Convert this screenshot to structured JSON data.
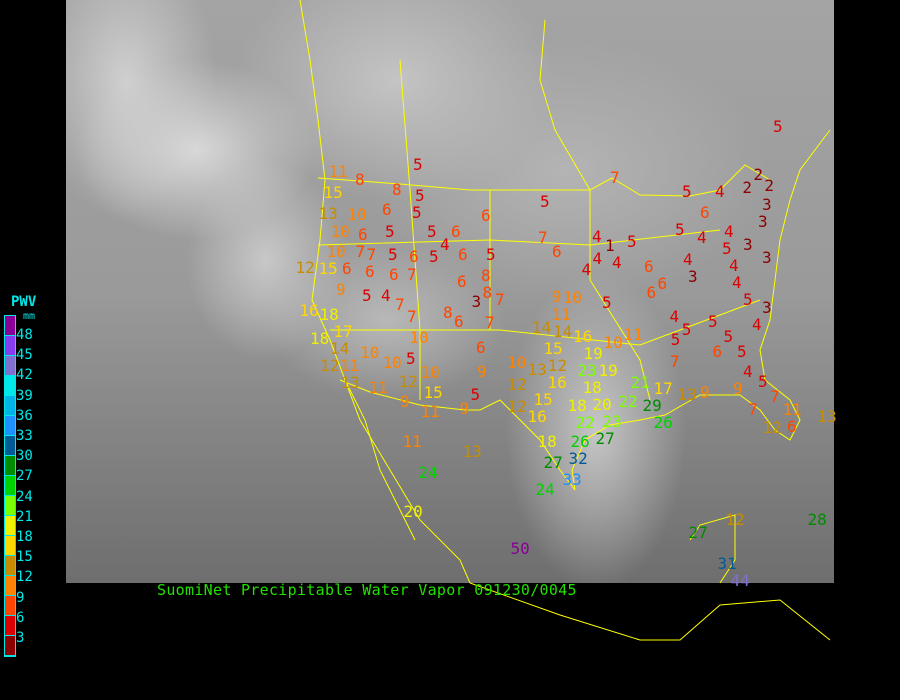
{
  "caption": "SuomiNet Precipitable Water Vapor 091230/0045",
  "legend": {
    "title": "PWV",
    "unit": "mm",
    "labels": [
      "48",
      "45",
      "42",
      "39",
      "36",
      "33",
      "30",
      "27",
      "24",
      "21",
      "18",
      "15",
      "12",
      "9",
      "6",
      "3"
    ],
    "colors": [
      "#8a0096",
      "#8a3cf0",
      "#8070d0",
      "#00e8e8",
      "#00b4e8",
      "#1e90ff",
      "#005a96",
      "#008c00",
      "#00d200",
      "#78ff00",
      "#f0f000",
      "#ffd700",
      "#c88c00",
      "#ff8200",
      "#ff4600",
      "#dc0000",
      "#8c0000"
    ]
  },
  "stations": [
    "11",
    "8",
    "15",
    "13",
    "10",
    "10",
    "10",
    "12",
    "15",
    "6",
    "6",
    "9",
    "5",
    "4",
    "16",
    "18",
    "18",
    "17",
    "5",
    "8",
    "5",
    "6",
    "5",
    "6",
    "7",
    "7",
    "5",
    "5",
    "6",
    "7",
    "6",
    "5",
    "6",
    "4",
    "5",
    "6",
    "5",
    "6",
    "6",
    "8",
    "8",
    "3",
    "7",
    "7",
    "7",
    "8",
    "6",
    "7",
    "10",
    "6",
    "5",
    "10",
    "10",
    "12",
    "15",
    "9",
    "11",
    "9",
    "5",
    "9",
    "12",
    "14",
    "11",
    "13",
    "11",
    "10",
    "11",
    "24",
    "20",
    "13",
    "10",
    "12",
    "12",
    "9",
    "10",
    "5",
    "11",
    "14",
    "14",
    "15",
    "16",
    "10",
    "11",
    "19",
    "13",
    "12",
    "16",
    "23",
    "19",
    "15",
    "16",
    "18",
    "18",
    "20",
    "22",
    "21",
    "17",
    "13",
    "9",
    "22",
    "23",
    "27",
    "26",
    "29",
    "26",
    "18",
    "32",
    "27",
    "33",
    "24",
    "5",
    "7",
    "5",
    "5",
    "4",
    "2",
    "2",
    "2",
    "3",
    "3",
    "6",
    "5",
    "4",
    "4",
    "3",
    "5",
    "7",
    "6",
    "4",
    "1",
    "5",
    "4",
    "4",
    "4",
    "6",
    "4",
    "3",
    "4",
    "4",
    "3",
    "6",
    "6",
    "5",
    "3",
    "4",
    "5",
    "5",
    "5",
    "4",
    "5",
    "5",
    "6",
    "7",
    "4",
    "5",
    "7",
    "9",
    "7",
    "11",
    "12",
    "6",
    "13",
    "12",
    "27",
    "28",
    "31",
    "44",
    "50",
    "12"
  ]
}
